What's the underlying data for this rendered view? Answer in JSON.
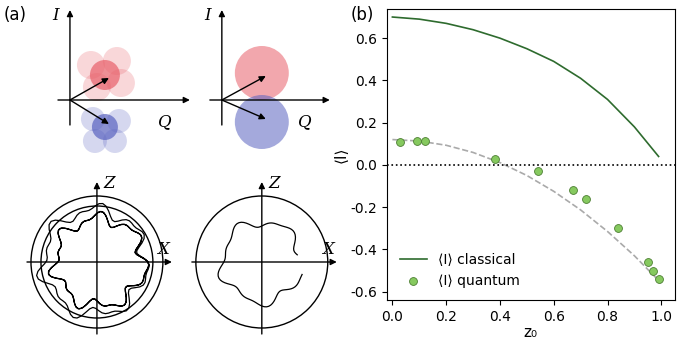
{
  "diagram": {
    "title": "(a)",
    "iq_panels": [
      {
        "vertical": "I",
        "horizontal": "Q"
      },
      {
        "vertical": "I",
        "horizontal": "Q"
      }
    ],
    "bloch_panels": [
      {
        "vertical": "Z",
        "horizontal": "X"
      },
      {
        "vertical": "Z",
        "horizontal": "X"
      }
    ]
  },
  "chart_data": {
    "type": "line",
    "title": "(b)",
    "x_label": "z₀",
    "y_label": "⟨I⟩",
    "xlim": [
      -0.02,
      1.05
    ],
    "ylim": [
      -0.64,
      0.74
    ],
    "xticks": [
      {
        "value": 0.0,
        "label": "0.0"
      },
      {
        "value": 0.2,
        "label": "0.2"
      },
      {
        "value": 0.4,
        "label": "0.4"
      },
      {
        "value": 0.6,
        "label": "0.6"
      },
      {
        "value": 0.8,
        "label": "0.8"
      },
      {
        "value": 1.0,
        "label": "1.0"
      }
    ],
    "yticks": [
      {
        "value": -0.6,
        "label": "-0.6"
      },
      {
        "value": -0.4,
        "label": "-0.4"
      },
      {
        "value": -0.2,
        "label": "-0.2"
      },
      {
        "value": 0.0,
        "label": "0.0"
      },
      {
        "value": 0.2,
        "label": "0.2"
      },
      {
        "value": 0.4,
        "label": "0.4"
      },
      {
        "value": 0.6,
        "label": "0.6"
      }
    ],
    "legend": "lower left",
    "series": [
      {
        "name": "⟨I⟩ classical",
        "type": "line",
        "color": "#2e6b2e",
        "line_style": "solid",
        "x": [
          0.0,
          0.1,
          0.2,
          0.3,
          0.4,
          0.5,
          0.6,
          0.7,
          0.8,
          0.9,
          0.99
        ],
        "values": [
          0.7,
          0.69,
          0.67,
          0.64,
          0.6,
          0.55,
          0.49,
          0.41,
          0.31,
          0.18,
          0.04
        ]
      },
      {
        "name": "⟨I⟩ quantum",
        "type": "scatter",
        "color": "#86c95f",
        "marker": "circle",
        "x": [
          0.03,
          0.09,
          0.12,
          0.38,
          0.54,
          0.67,
          0.72,
          0.84,
          0.95,
          0.97,
          0.99
        ],
        "values": [
          0.11,
          0.115,
          0.115,
          0.03,
          -0.03,
          -0.12,
          -0.16,
          -0.3,
          -0.46,
          -0.5,
          -0.54
        ]
      },
      {
        "type": "line",
        "color": "#aaaaaa",
        "line_style": "dashed",
        "x": [
          0.0,
          0.1,
          0.2,
          0.3,
          0.4,
          0.5,
          0.6,
          0.7,
          0.8,
          0.9,
          1.0
        ],
        "values": [
          0.12,
          0.113,
          0.093,
          0.059,
          0.011,
          -0.05,
          -0.125,
          -0.213,
          -0.315,
          -0.43,
          -0.56
        ]
      },
      {
        "type": "line",
        "color": "#000000",
        "line_style": "dotted",
        "x": [
          -0.02,
          1.05
        ],
        "values": [
          0.0,
          0.0
        ]
      }
    ]
  }
}
